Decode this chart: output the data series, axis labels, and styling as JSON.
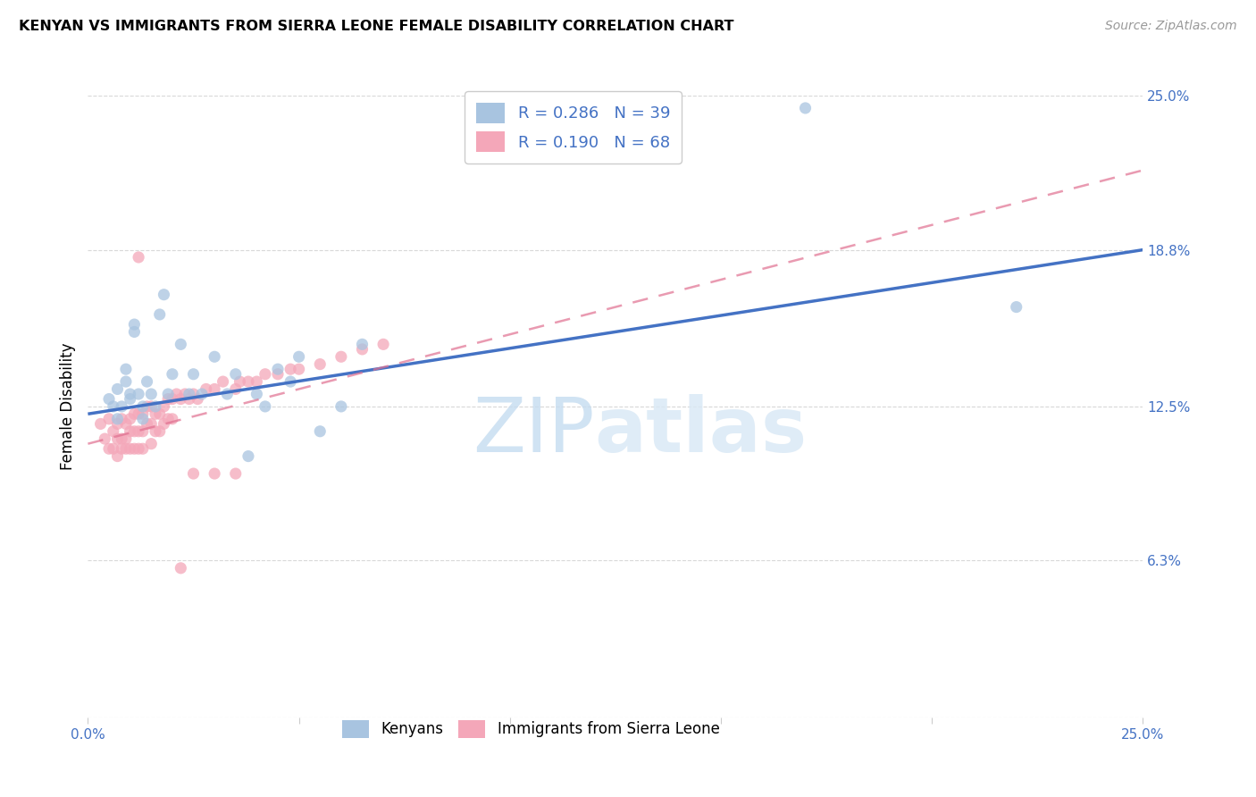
{
  "title": "KENYAN VS IMMIGRANTS FROM SIERRA LEONE FEMALE DISABILITY CORRELATION CHART",
  "source": "Source: ZipAtlas.com",
  "ylabel": "Female Disability",
  "x_min": 0.0,
  "x_max": 0.25,
  "y_min": 0.0,
  "y_max": 0.25,
  "x_ticks": [
    0.0,
    0.05,
    0.1,
    0.15,
    0.2,
    0.25
  ],
  "x_tick_labels": [
    "0.0%",
    "",
    "",
    "",
    "",
    "25.0%"
  ],
  "y_tick_labels_right": [
    "25.0%",
    "18.8%",
    "12.5%",
    "6.3%",
    ""
  ],
  "y_tick_positions_right": [
    0.25,
    0.188,
    0.125,
    0.063,
    0.0
  ],
  "kenyan_R": 0.286,
  "kenyan_N": 39,
  "sierraleone_R": 0.19,
  "sierraleone_N": 68,
  "kenyan_color": "#a8c4e0",
  "kenyan_line_color": "#4472c4",
  "sierraleone_color": "#f4a7b9",
  "sierraleone_line_color": "#e07090",
  "legend_R_N_color": "#4472c4",
  "watermark_zip": "ZIP",
  "watermark_atlas": "atlas",
  "kenyan_scatter_x": [
    0.005,
    0.006,
    0.007,
    0.007,
    0.008,
    0.009,
    0.009,
    0.01,
    0.01,
    0.011,
    0.011,
    0.012,
    0.013,
    0.013,
    0.014,
    0.015,
    0.016,
    0.017,
    0.018,
    0.019,
    0.02,
    0.022,
    0.024,
    0.025,
    0.027,
    0.03,
    0.033,
    0.035,
    0.038,
    0.04,
    0.042,
    0.045,
    0.048,
    0.05,
    0.055,
    0.06,
    0.065,
    0.17,
    0.22
  ],
  "kenyan_scatter_y": [
    0.128,
    0.125,
    0.132,
    0.12,
    0.125,
    0.14,
    0.135,
    0.128,
    0.13,
    0.155,
    0.158,
    0.13,
    0.125,
    0.12,
    0.135,
    0.13,
    0.125,
    0.162,
    0.17,
    0.13,
    0.138,
    0.15,
    0.13,
    0.138,
    0.13,
    0.145,
    0.13,
    0.138,
    0.105,
    0.13,
    0.125,
    0.14,
    0.135,
    0.145,
    0.115,
    0.125,
    0.15,
    0.245,
    0.165
  ],
  "sierraleone_scatter_x": [
    0.003,
    0.004,
    0.005,
    0.005,
    0.006,
    0.006,
    0.007,
    0.007,
    0.007,
    0.008,
    0.008,
    0.008,
    0.009,
    0.009,
    0.009,
    0.01,
    0.01,
    0.01,
    0.011,
    0.011,
    0.011,
    0.012,
    0.012,
    0.012,
    0.013,
    0.013,
    0.013,
    0.014,
    0.014,
    0.015,
    0.015,
    0.015,
    0.016,
    0.016,
    0.017,
    0.017,
    0.018,
    0.018,
    0.019,
    0.019,
    0.02,
    0.02,
    0.021,
    0.022,
    0.023,
    0.024,
    0.025,
    0.026,
    0.028,
    0.03,
    0.032,
    0.035,
    0.036,
    0.038,
    0.04,
    0.042,
    0.045,
    0.048,
    0.05,
    0.055,
    0.06,
    0.065,
    0.012,
    0.07,
    0.025,
    0.03,
    0.035,
    0.022
  ],
  "sierraleone_scatter_y": [
    0.118,
    0.112,
    0.12,
    0.108,
    0.115,
    0.108,
    0.118,
    0.112,
    0.105,
    0.12,
    0.112,
    0.108,
    0.118,
    0.112,
    0.108,
    0.12,
    0.115,
    0.108,
    0.122,
    0.115,
    0.108,
    0.122,
    0.115,
    0.108,
    0.122,
    0.115,
    0.108,
    0.125,
    0.118,
    0.125,
    0.118,
    0.11,
    0.122,
    0.115,
    0.122,
    0.115,
    0.125,
    0.118,
    0.128,
    0.12,
    0.128,
    0.12,
    0.13,
    0.128,
    0.13,
    0.128,
    0.13,
    0.128,
    0.132,
    0.132,
    0.135,
    0.132,
    0.135,
    0.135,
    0.135,
    0.138,
    0.138,
    0.14,
    0.14,
    0.142,
    0.145,
    0.148,
    0.185,
    0.15,
    0.098,
    0.098,
    0.098,
    0.06
  ],
  "kenyan_line_x0": 0.0,
  "kenyan_line_x1": 0.25,
  "kenyan_line_y0": 0.122,
  "kenyan_line_y1": 0.188,
  "sl_line_x0": 0.0,
  "sl_line_x1": 0.25,
  "sl_line_y0": 0.11,
  "sl_line_y1": 0.22
}
